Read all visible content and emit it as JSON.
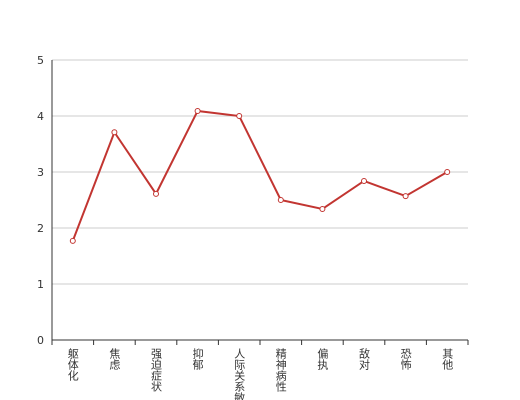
{
  "chart_data": {
    "type": "line",
    "categories": [
      "躯体化",
      "焦虑",
      "强迫症状",
      "抑郁",
      "人际关系敏感",
      "精神病性",
      "偏执",
      "敌对",
      "恐怖",
      "其他"
    ],
    "values": [
      1.77,
      3.71,
      2.61,
      4.09,
      4.0,
      2.5,
      2.34,
      2.84,
      2.57,
      3.0
    ],
    "color": "#c23531",
    "ylim": [
      0,
      5
    ],
    "yticks": [
      0,
      1,
      2,
      3,
      4,
      5
    ],
    "grid": true
  }
}
